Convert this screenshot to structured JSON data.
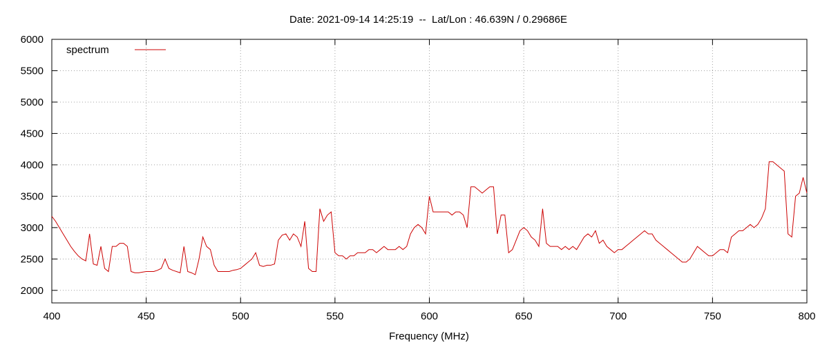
{
  "chart_data": {
    "type": "line",
    "title": "Date: 2021-09-14 14:25:19  --  Lat/Lon : 46.639N / 0.29686E",
    "x_label": "Frequency (MHz)",
    "legend": "top-left",
    "grid": true,
    "xlim": [
      400,
      800
    ],
    "ylim": [
      1800,
      6000
    ],
    "xticks": [
      400,
      450,
      500,
      550,
      600,
      650,
      700,
      750,
      800
    ],
    "yticks": [
      2000,
      2500,
      3000,
      3500,
      4000,
      4500,
      5000,
      5500,
      6000
    ],
    "x": [
      400,
      402,
      404,
      406,
      408,
      410,
      412,
      414,
      416,
      418,
      420,
      422,
      424,
      426,
      428,
      430,
      432,
      434,
      436,
      438,
      440,
      442,
      444,
      446,
      448,
      450,
      452,
      454,
      456,
      458,
      460,
      462,
      464,
      466,
      468,
      470,
      472,
      474,
      476,
      478,
      480,
      482,
      484,
      486,
      488,
      490,
      492,
      494,
      496,
      498,
      500,
      502,
      504,
      506,
      508,
      510,
      512,
      514,
      516,
      518,
      520,
      522,
      524,
      526,
      528,
      530,
      532,
      534,
      536,
      538,
      540,
      542,
      544,
      546,
      548,
      550,
      552,
      554,
      556,
      558,
      560,
      562,
      564,
      566,
      568,
      570,
      572,
      574,
      576,
      578,
      580,
      582,
      584,
      586,
      588,
      590,
      592,
      594,
      596,
      598,
      600,
      602,
      604,
      606,
      608,
      610,
      612,
      614,
      616,
      618,
      620,
      622,
      624,
      626,
      628,
      630,
      632,
      634,
      636,
      638,
      640,
      642,
      644,
      646,
      648,
      650,
      652,
      654,
      656,
      658,
      660,
      662,
      664,
      666,
      668,
      670,
      672,
      674,
      676,
      678,
      680,
      682,
      684,
      686,
      688,
      690,
      692,
      694,
      696,
      698,
      700,
      702,
      704,
      706,
      708,
      710,
      712,
      714,
      716,
      718,
      720,
      722,
      724,
      726,
      728,
      730,
      732,
      734,
      736,
      738,
      740,
      742,
      744,
      746,
      748,
      750,
      752,
      754,
      756,
      758,
      760,
      762,
      764,
      766,
      768,
      770,
      772,
      774,
      776,
      778,
      780,
      782,
      784,
      786,
      788,
      790,
      792,
      794,
      796,
      798,
      800
    ],
    "series": [
      {
        "name": "spectrum",
        "color": "#cc0000",
        "values": [
          3180,
          3100,
          3000,
          2900,
          2800,
          2700,
          2620,
          2550,
          2500,
          2470,
          2900,
          2420,
          2400,
          2700,
          2350,
          2300,
          2700,
          2700,
          2750,
          2750,
          2700,
          2300,
          2280,
          2280,
          2290,
          2300,
          2300,
          2300,
          2320,
          2350,
          2500,
          2350,
          2320,
          2300,
          2280,
          2700,
          2300,
          2280,
          2250,
          2500,
          2850,
          2700,
          2650,
          2400,
          2300,
          2300,
          2300,
          2300,
          2320,
          2330,
          2350,
          2400,
          2450,
          2500,
          2600,
          2400,
          2380,
          2400,
          2400,
          2420,
          2800,
          2880,
          2900,
          2800,
          2900,
          2850,
          2700,
          3100,
          2350,
          2300,
          2300,
          3300,
          3100,
          3200,
          3250,
          2600,
          2550,
          2550,
          2500,
          2550,
          2550,
          2600,
          2600,
          2600,
          2650,
          2650,
          2600,
          2650,
          2700,
          2650,
          2650,
          2650,
          2700,
          2650,
          2700,
          2900,
          3000,
          3050,
          3000,
          2900,
          3500,
          3250,
          3250,
          3250,
          3250,
          3250,
          3200,
          3250,
          3250,
          3200,
          3000,
          3650,
          3650,
          3600,
          3550,
          3600,
          3650,
          3650,
          2900,
          3200,
          3200,
          2600,
          2650,
          2800,
          2950,
          3000,
          2950,
          2850,
          2800,
          2700,
          3300,
          2750,
          2700,
          2700,
          2700,
          2650,
          2700,
          2650,
          2700,
          2650,
          2750,
          2850,
          2900,
          2850,
          2950,
          2750,
          2800,
          2700,
          2650,
          2600,
          2650,
          2650,
          2700,
          2750,
          2800,
          2850,
          2900,
          2950,
          2900,
          2900,
          2800,
          2750,
          2700,
          2650,
          2600,
          2550,
          2500,
          2450,
          2450,
          2500,
          2600,
          2700,
          2650,
          2600,
          2550,
          2550,
          2600,
          2650,
          2650,
          2600,
          2850,
          2900,
          2950,
          2950,
          3000,
          3050,
          3000,
          3050,
          3150,
          3300,
          4050,
          4050,
          4000,
          3950,
          3900,
          2900,
          2850,
          3500,
          3550,
          3800,
          3550
        ]
      }
    ]
  }
}
